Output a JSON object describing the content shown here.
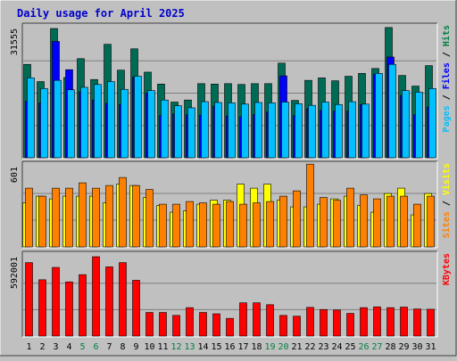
{
  "chart_data": {
    "type": "bar",
    "title": "Daily usage for April 2025",
    "colors": {
      "background": "#c0c0c0",
      "panel": "#c0c0c0",
      "grid": "#808080",
      "title": "#0000cc",
      "hits": "#006b54",
      "files": "#0000ff",
      "pages": "#00c0ff",
      "visits": "#ffff00",
      "sites": "#ff8000",
      "kbytes": "#ff0000",
      "weekend_label": "#008040",
      "weekday_label": "#000000",
      "axis_dark": "#404040",
      "axis_light": "#ffffff"
    },
    "x": [
      "1",
      "2",
      "3",
      "4",
      "5",
      "6",
      "7",
      "8",
      "9",
      "10",
      "11",
      "12",
      "13",
      "14",
      "15",
      "16",
      "17",
      "18",
      "19",
      "20",
      "21",
      "22",
      "23",
      "24",
      "25",
      "26",
      "27",
      "28",
      "29",
      "30",
      "31"
    ],
    "weekend_days": [
      5,
      6,
      12,
      13,
      19,
      20,
      26,
      27
    ],
    "panels": [
      {
        "id": "hits",
        "ymax_label": "31555",
        "ymax": 31555,
        "side_labels": [
          {
            "text": "Pages",
            "color": "#00c0ff"
          },
          {
            "text": " / ",
            "color": "#000000"
          },
          {
            "text": "Files",
            "color": "#0000ff"
          },
          {
            "text": " / ",
            "color": "#000000"
          },
          {
            "text": "Hits",
            "color": "#008040"
          }
        ],
        "series": [
          {
            "name": "Hits",
            "color": "#006b54",
            "values": [
              22800,
              18600,
              31555,
              19600,
              24200,
              19100,
              27700,
              21400,
              26600,
              20900,
              18000,
              13600,
              14100,
              18100,
              18000,
              18100,
              17900,
              18100,
              18100,
              23100,
              14000,
              18900,
              19500,
              18800,
              19900,
              20600,
              21800,
              31800,
              20100,
              17500,
              22500
            ]
          },
          {
            "name": "Files",
            "color": "#0000ff",
            "values": [
              13800,
              13400,
              28400,
              21500,
              16100,
              14100,
              13300,
              13000,
              19700,
              15800,
              10300,
              10700,
              10500,
              10400,
              12600,
              10200,
              10000,
              10600,
              11200,
              20000,
              10300,
              12000,
              11600,
              11400,
              11400,
              13000,
              20400,
              24600,
              15200,
              10500,
              12400
            ]
          },
          {
            "name": "Pages",
            "color": "#00c0ff",
            "values": [
              19500,
              16900,
              18900,
              16600,
              17200,
              17900,
              18600,
              16700,
              19900,
              16400,
              14100,
              12700,
              12200,
              13700,
              13500,
              13400,
              13100,
              13500,
              13400,
              13600,
              13200,
              12800,
              13600,
              13000,
              13700,
              13100,
              20600,
              22800,
              16400,
              16000,
              16900
            ]
          }
        ]
      },
      {
        "id": "sites",
        "ymax_label": "601",
        "ymax": 601,
        "side_labels": [
          {
            "text": "Sites",
            "color": "#ff8000"
          },
          {
            "text": " / ",
            "color": "#000000"
          },
          {
            "text": "Visits",
            "color": "#ffff00"
          }
        ],
        "series": [
          {
            "name": "Visits",
            "color": "#ffff00",
            "values": [
              330,
              380,
              360,
              380,
              380,
              380,
              330,
              470,
              460,
              370,
              310,
              260,
              270,
              320,
              350,
              350,
              470,
              440,
              470,
              350,
              300,
              300,
              320,
              360,
              380,
              310,
              260,
              400,
              440,
              240,
              400
            ]
          },
          {
            "name": "Sites",
            "color": "#ff8000",
            "values": [
              440,
              380,
              440,
              440,
              480,
              440,
              460,
              520,
              460,
              430,
              320,
              320,
              340,
              330,
              320,
              340,
              320,
              330,
              340,
              380,
              420,
              620,
              370,
              350,
              440,
              390,
              360,
              380,
              380,
              320,
              380
            ]
          }
        ]
      },
      {
        "id": "kbytes",
        "ymax_label": "592001",
        "ymax": 592001,
        "side_labels": [
          {
            "text": "KBytes",
            "color": "#ff0000"
          }
        ],
        "series": [
          {
            "name": "KBytes",
            "color": "#ff0000",
            "values": [
              548000,
              420000,
              512000,
              404000,
              458000,
              592001,
              516000,
              548000,
              416000,
              176000,
              176000,
              154000,
              212000,
              176000,
              166000,
              132000,
              248000,
              248000,
              234000,
              154000,
              148000,
              214000,
              198000,
              194000,
              169000,
              212000,
              218000,
              212000,
              216000,
              202000,
              200000
            ]
          }
        ]
      }
    ]
  }
}
